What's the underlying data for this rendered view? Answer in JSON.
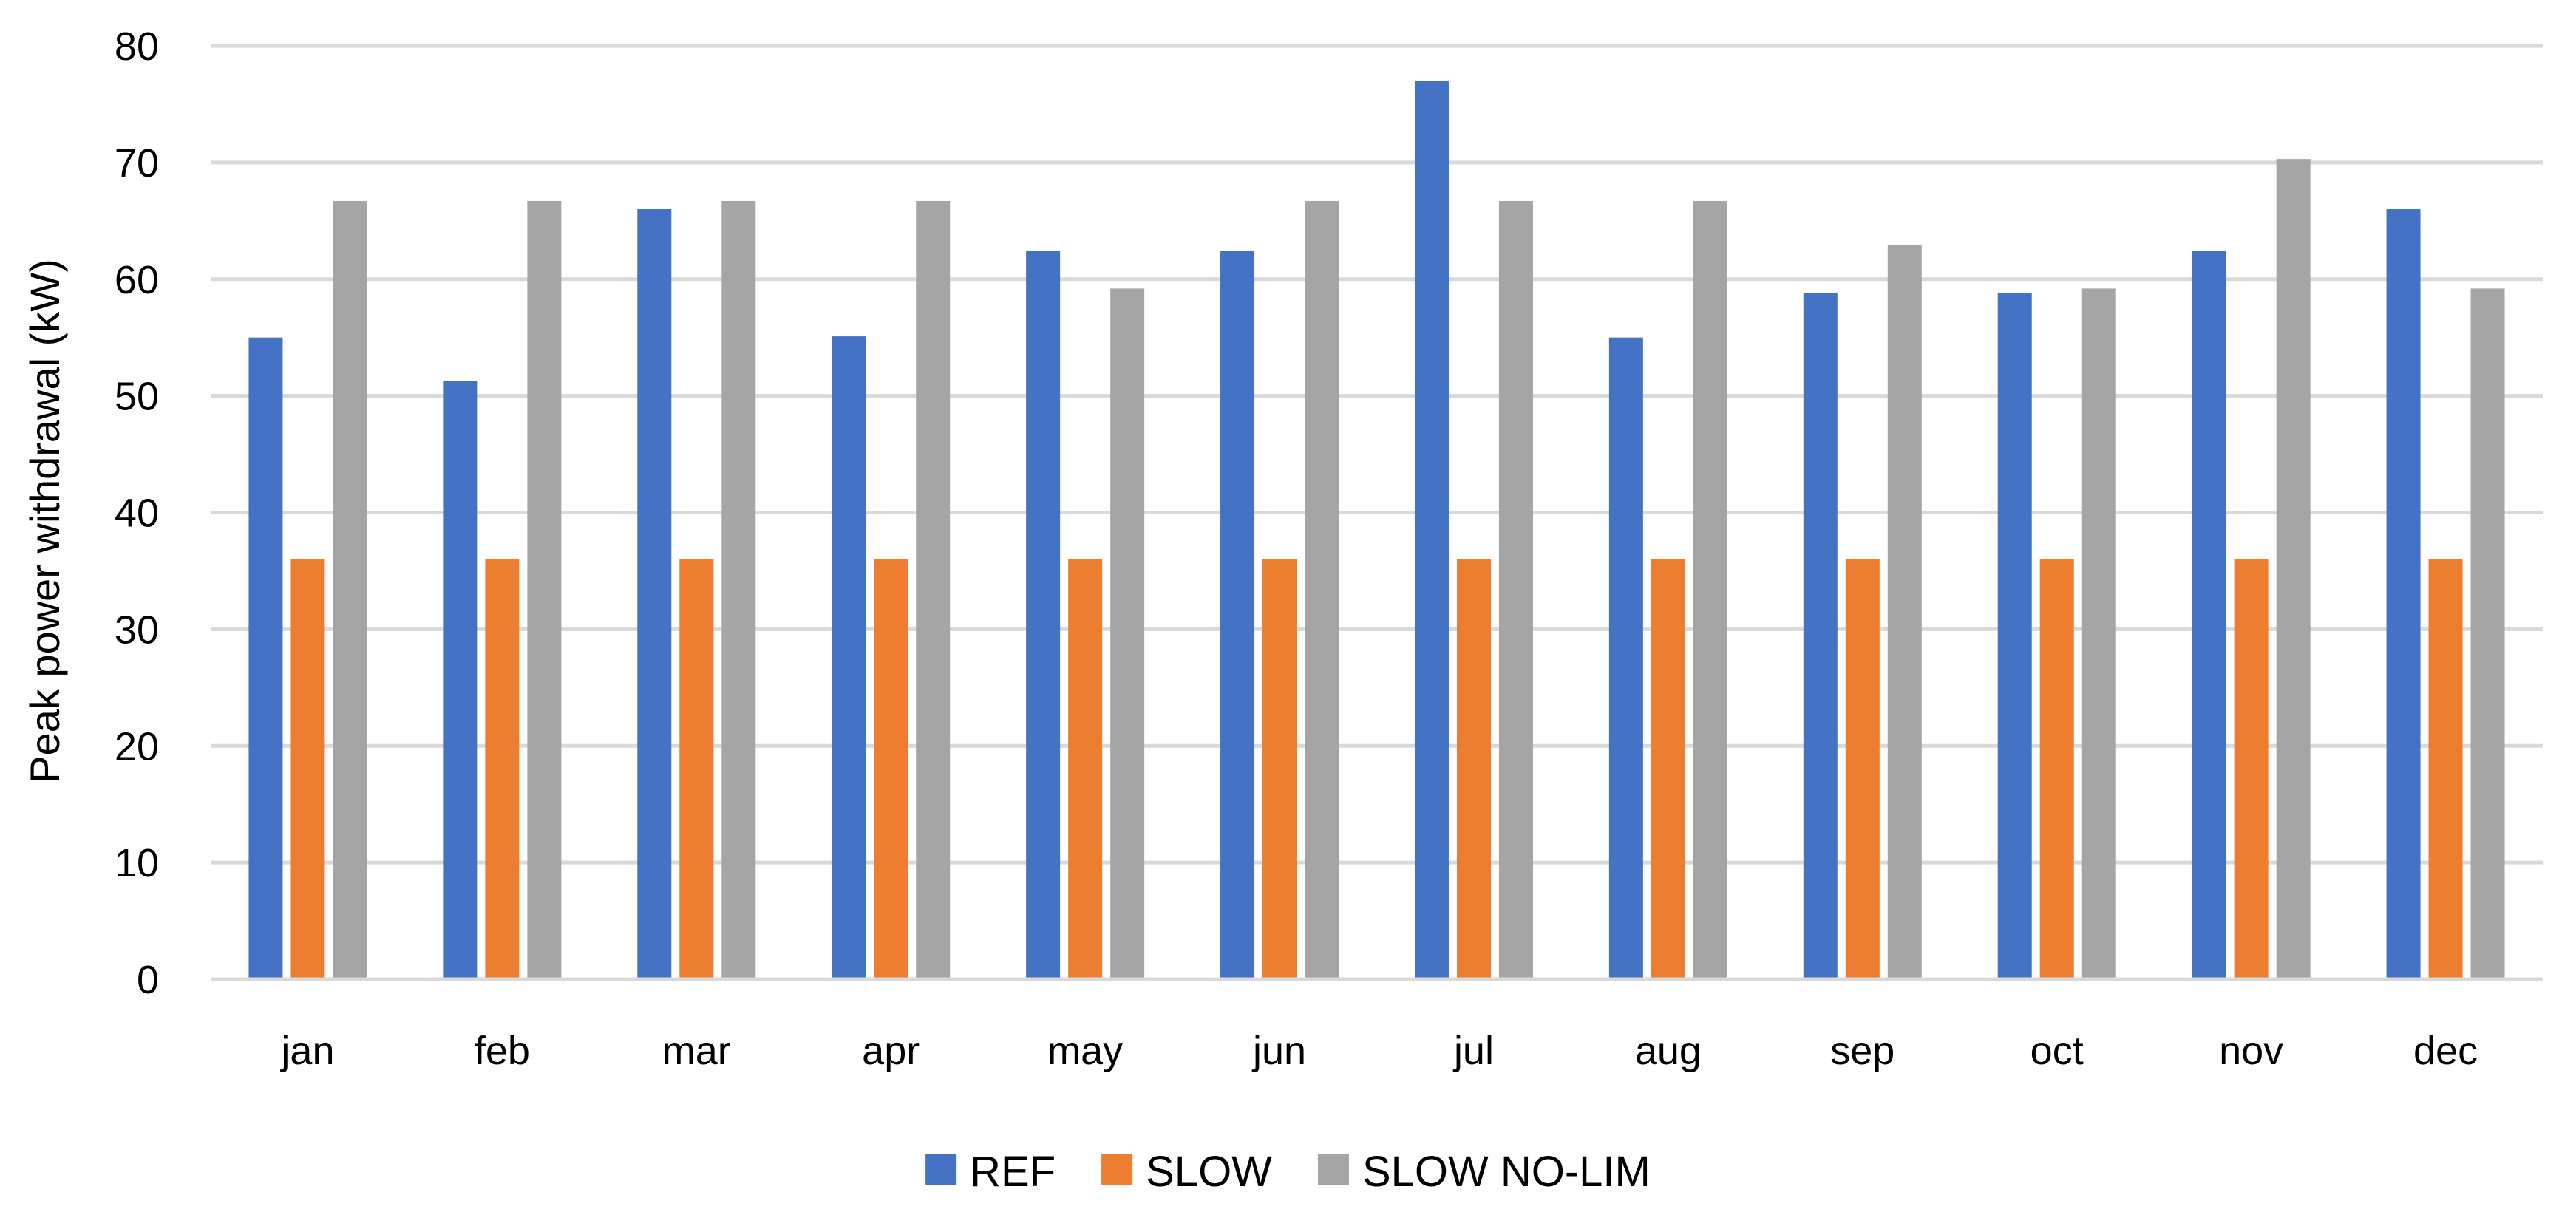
{
  "chart_data": {
    "type": "bar",
    "title": "",
    "xlabel": "",
    "ylabel": "Peak power withdrawal (kW)",
    "ylim": [
      0,
      80
    ],
    "yticks": [
      0,
      10,
      20,
      30,
      40,
      50,
      60,
      70,
      80
    ],
    "grid": true,
    "legend_position": "bottom",
    "categories": [
      "jan",
      "feb",
      "mar",
      "apr",
      "may",
      "jun",
      "jul",
      "aug",
      "sep",
      "oct",
      "nov",
      "dec"
    ],
    "series": [
      {
        "name": "REF",
        "color": "#4472C4",
        "values": [
          55,
          51.3,
          66,
          55.1,
          62.4,
          62.4,
          77,
          55,
          58.8,
          58.8,
          62.4,
          66
        ]
      },
      {
        "name": "SLOW",
        "color": "#ED7D31",
        "values": [
          36,
          36,
          36,
          36,
          36,
          36,
          36,
          36,
          36,
          36,
          36,
          36
        ]
      },
      {
        "name": "SLOW NO-LIM",
        "color": "#A5A5A5",
        "values": [
          66.7,
          66.7,
          66.7,
          66.7,
          59.2,
          66.7,
          66.7,
          66.7,
          62.9,
          59.2,
          70.3,
          59.2
        ]
      }
    ],
    "gridline_color": "#D9D9D9"
  }
}
